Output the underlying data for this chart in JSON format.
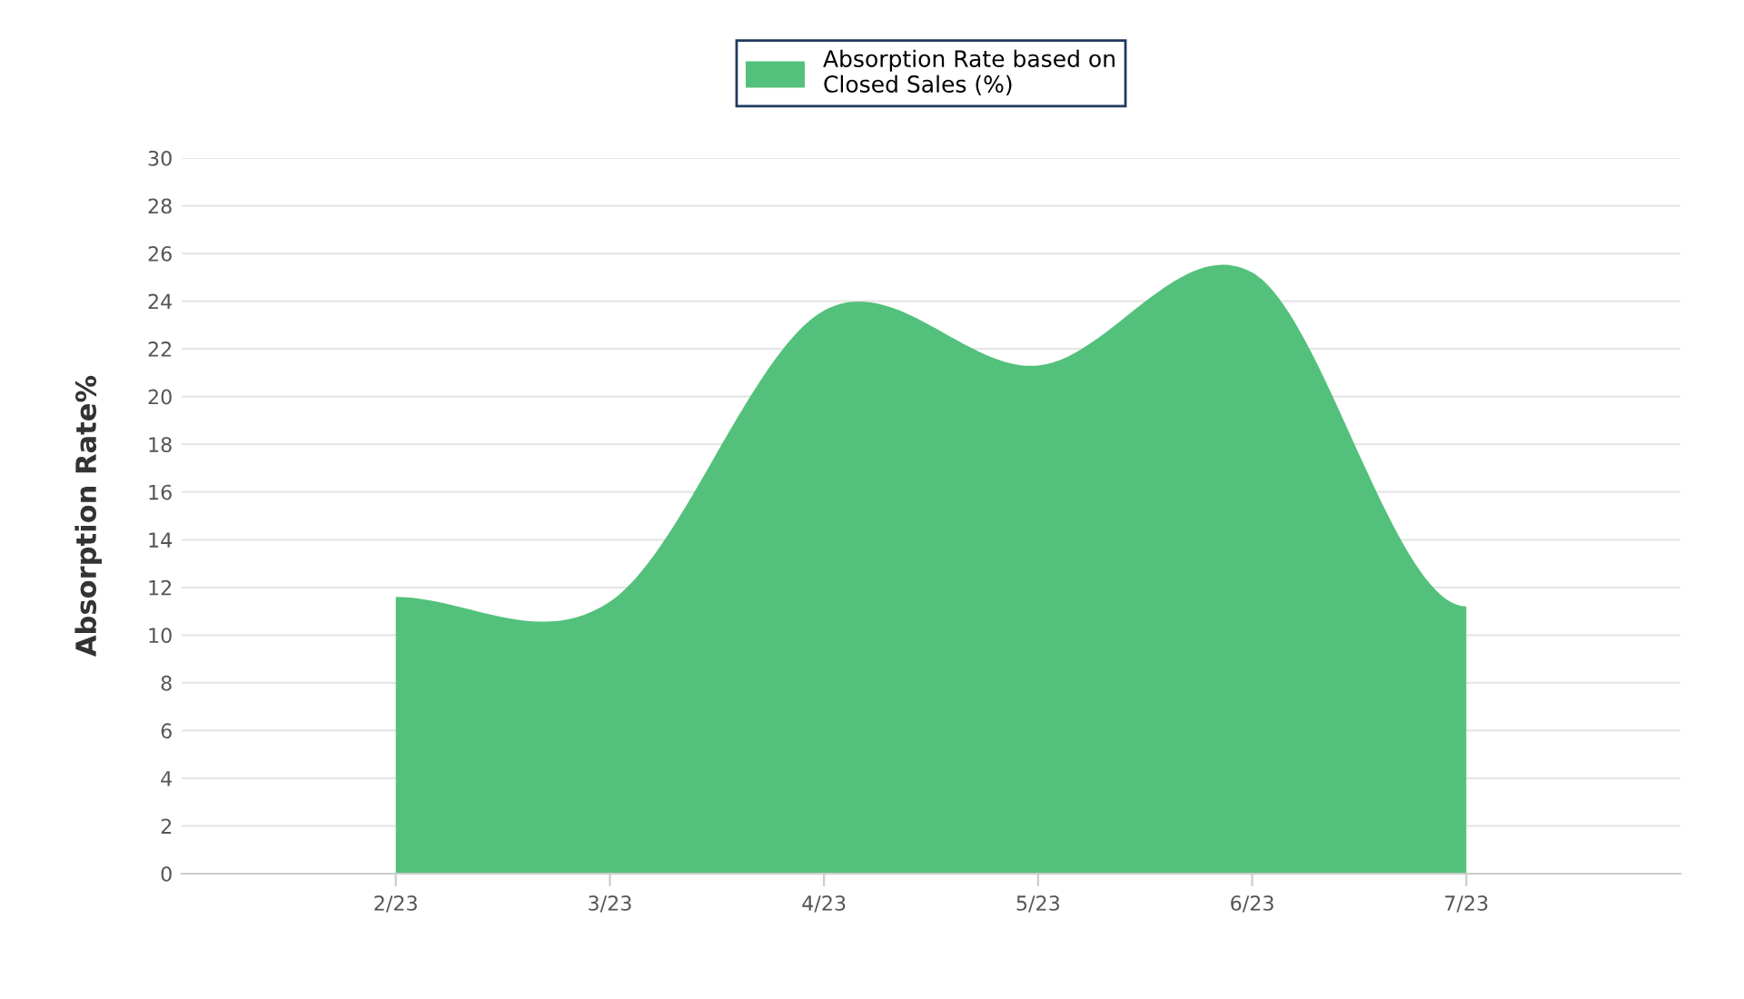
{
  "chart_data": {
    "type": "area",
    "categories": [
      "2/23",
      "3/23",
      "4/23",
      "5/23",
      "6/23",
      "7/23"
    ],
    "series": [
      {
        "name": "Absorption Rate based on\nClosed Sales (%)",
        "color": "#53c17b",
        "values": [
          11.6,
          11.4,
          23.6,
          21.3,
          25.2,
          11.2
        ]
      }
    ],
    "ylabel": "Absorption Rate%",
    "ylim": [
      0,
      30
    ],
    "yticks": [
      0,
      2,
      4,
      6,
      8,
      10,
      12,
      14,
      16,
      18,
      20,
      22,
      24,
      26,
      28,
      30
    ],
    "grid": "y",
    "legend": "top"
  }
}
